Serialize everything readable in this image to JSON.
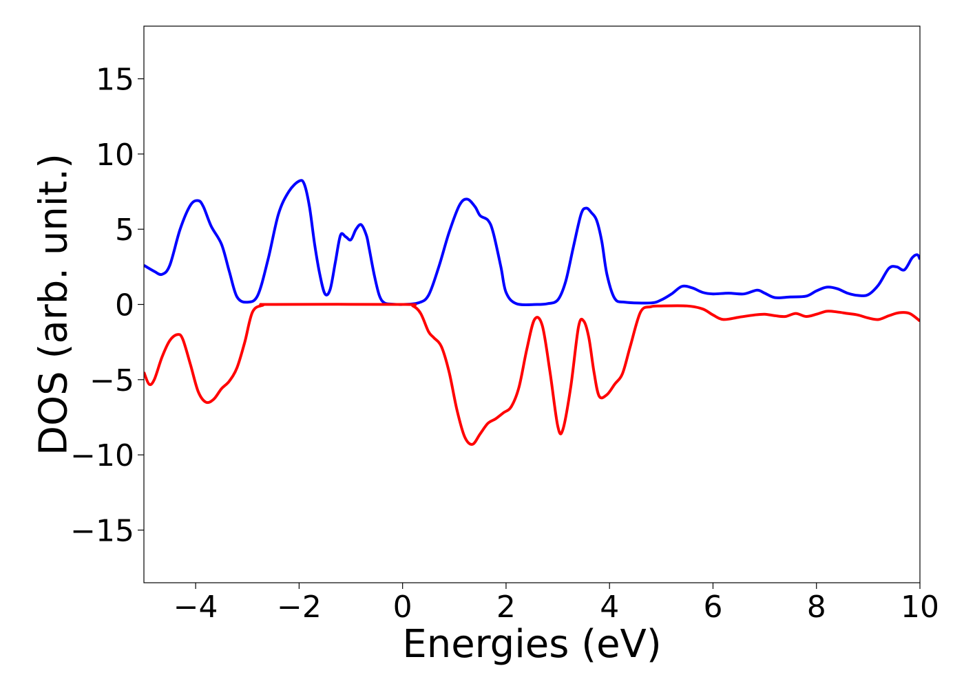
{
  "chart_data": {
    "type": "line",
    "title": "",
    "xlabel": "Energies (eV)",
    "ylabel": "DOS (arb. unit.)",
    "xlim": [
      -5,
      10
    ],
    "ylim": [
      -18.5,
      18.5
    ],
    "grid": false,
    "legend": "none",
    "x_ticks": [
      -4,
      -2,
      0,
      2,
      4,
      6,
      8,
      10
    ],
    "x_tick_labels": [
      "−4",
      "−2",
      "0",
      "2",
      "4",
      "6",
      "8",
      "10"
    ],
    "y_ticks": [
      -15,
      -10,
      -5,
      0,
      5,
      10,
      15
    ],
    "y_tick_labels": [
      "−15",
      "−10",
      "−5",
      "0",
      "5",
      "10",
      "15"
    ],
    "series": [
      {
        "color": "#0000ff",
        "x": [
          -5.0,
          -4.8,
          -4.65,
          -4.5,
          -4.3,
          -4.1,
          -3.95,
          -3.85,
          -3.7,
          -3.5,
          -3.35,
          -3.2,
          -3.0,
          -2.8,
          -2.6,
          -2.4,
          -2.2,
          -2.0,
          -1.9,
          -1.8,
          -1.7,
          -1.6,
          -1.5,
          -1.4,
          -1.3,
          -1.2,
          -1.1,
          -1.0,
          -0.9,
          -0.8,
          -0.7,
          -0.65,
          -0.55,
          -0.45,
          -0.35,
          -0.2,
          0.0,
          0.3,
          0.5,
          0.7,
          0.9,
          1.1,
          1.25,
          1.4,
          1.5,
          1.65,
          1.75,
          1.9,
          2.0,
          2.2,
          2.6,
          2.8,
          3.0,
          3.15,
          3.3,
          3.45,
          3.55,
          3.65,
          3.75,
          3.85,
          3.95,
          4.1,
          4.3,
          4.8,
          5.0,
          5.2,
          5.4,
          5.6,
          5.8,
          6.0,
          6.3,
          6.6,
          6.85,
          7.0,
          7.2,
          7.5,
          7.8,
          8.0,
          8.2,
          8.4,
          8.6,
          8.8,
          9.0,
          9.2,
          9.4,
          9.55,
          9.7,
          9.85,
          9.95,
          10.0
        ],
        "y": [
          2.6,
          2.2,
          2.0,
          2.6,
          5.0,
          6.6,
          6.9,
          6.5,
          5.2,
          4.0,
          2.2,
          0.5,
          0.15,
          0.6,
          3.0,
          6.0,
          7.5,
          8.2,
          8.0,
          6.5,
          4.0,
          2.0,
          0.7,
          1.0,
          2.8,
          4.6,
          4.5,
          4.3,
          5.0,
          5.3,
          4.6,
          3.8,
          2.0,
          0.6,
          0.1,
          0.02,
          0.0,
          0.1,
          0.6,
          2.5,
          4.8,
          6.6,
          7.0,
          6.5,
          5.9,
          5.6,
          4.8,
          2.5,
          0.8,
          0.05,
          0.0,
          0.05,
          0.3,
          1.5,
          3.8,
          6.0,
          6.4,
          6.1,
          5.6,
          4.2,
          2.0,
          0.4,
          0.15,
          0.1,
          0.3,
          0.7,
          1.2,
          1.1,
          0.8,
          0.7,
          0.75,
          0.7,
          0.95,
          0.75,
          0.45,
          0.5,
          0.55,
          0.9,
          1.15,
          1.05,
          0.75,
          0.6,
          0.65,
          1.3,
          2.4,
          2.5,
          2.3,
          3.1,
          3.3,
          3.0
        ]
      },
      {
        "color": "#ff0000",
        "x": [
          -5.0,
          -4.9,
          -4.8,
          -4.65,
          -4.5,
          -4.35,
          -4.25,
          -4.1,
          -3.95,
          -3.8,
          -3.65,
          -3.5,
          -3.35,
          -3.2,
          -3.05,
          -2.9,
          -2.7,
          -2.5,
          0.0,
          0.2,
          0.35,
          0.5,
          0.6,
          0.75,
          0.9,
          1.05,
          1.2,
          1.35,
          1.5,
          1.65,
          1.8,
          1.95,
          2.1,
          2.25,
          2.4,
          2.55,
          2.7,
          2.85,
          3.0,
          3.1,
          3.25,
          3.4,
          3.5,
          3.6,
          3.7,
          3.8,
          3.95,
          4.1,
          4.25,
          4.4,
          4.6,
          4.8,
          5.0,
          5.5,
          5.8,
          6.0,
          6.2,
          6.5,
          6.8,
          7.0,
          7.2,
          7.4,
          7.6,
          7.8,
          8.0,
          8.2,
          8.4,
          8.6,
          8.8,
          9.0,
          9.2,
          9.4,
          9.6,
          9.8,
          10.0
        ],
        "y": [
          -4.5,
          -5.3,
          -5.0,
          -3.5,
          -2.4,
          -2.0,
          -2.3,
          -4.0,
          -5.8,
          -6.5,
          -6.3,
          -5.6,
          -5.1,
          -4.2,
          -2.5,
          -0.5,
          -0.05,
          0.0,
          0.0,
          -0.1,
          -0.6,
          -1.8,
          -2.2,
          -2.8,
          -4.5,
          -7.0,
          -8.8,
          -9.3,
          -8.6,
          -7.9,
          -7.6,
          -7.2,
          -6.8,
          -5.5,
          -3.0,
          -1.0,
          -1.4,
          -4.5,
          -8.1,
          -8.3,
          -5.5,
          -1.5,
          -1.1,
          -2.2,
          -4.5,
          -6.1,
          -6.0,
          -5.3,
          -4.6,
          -2.8,
          -0.5,
          -0.15,
          -0.1,
          -0.1,
          -0.3,
          -0.7,
          -1.0,
          -0.85,
          -0.7,
          -0.65,
          -0.75,
          -0.8,
          -0.6,
          -0.8,
          -0.65,
          -0.45,
          -0.5,
          -0.6,
          -0.7,
          -0.9,
          -1.0,
          -0.75,
          -0.55,
          -0.6,
          -1.1
        ]
      }
    ]
  }
}
